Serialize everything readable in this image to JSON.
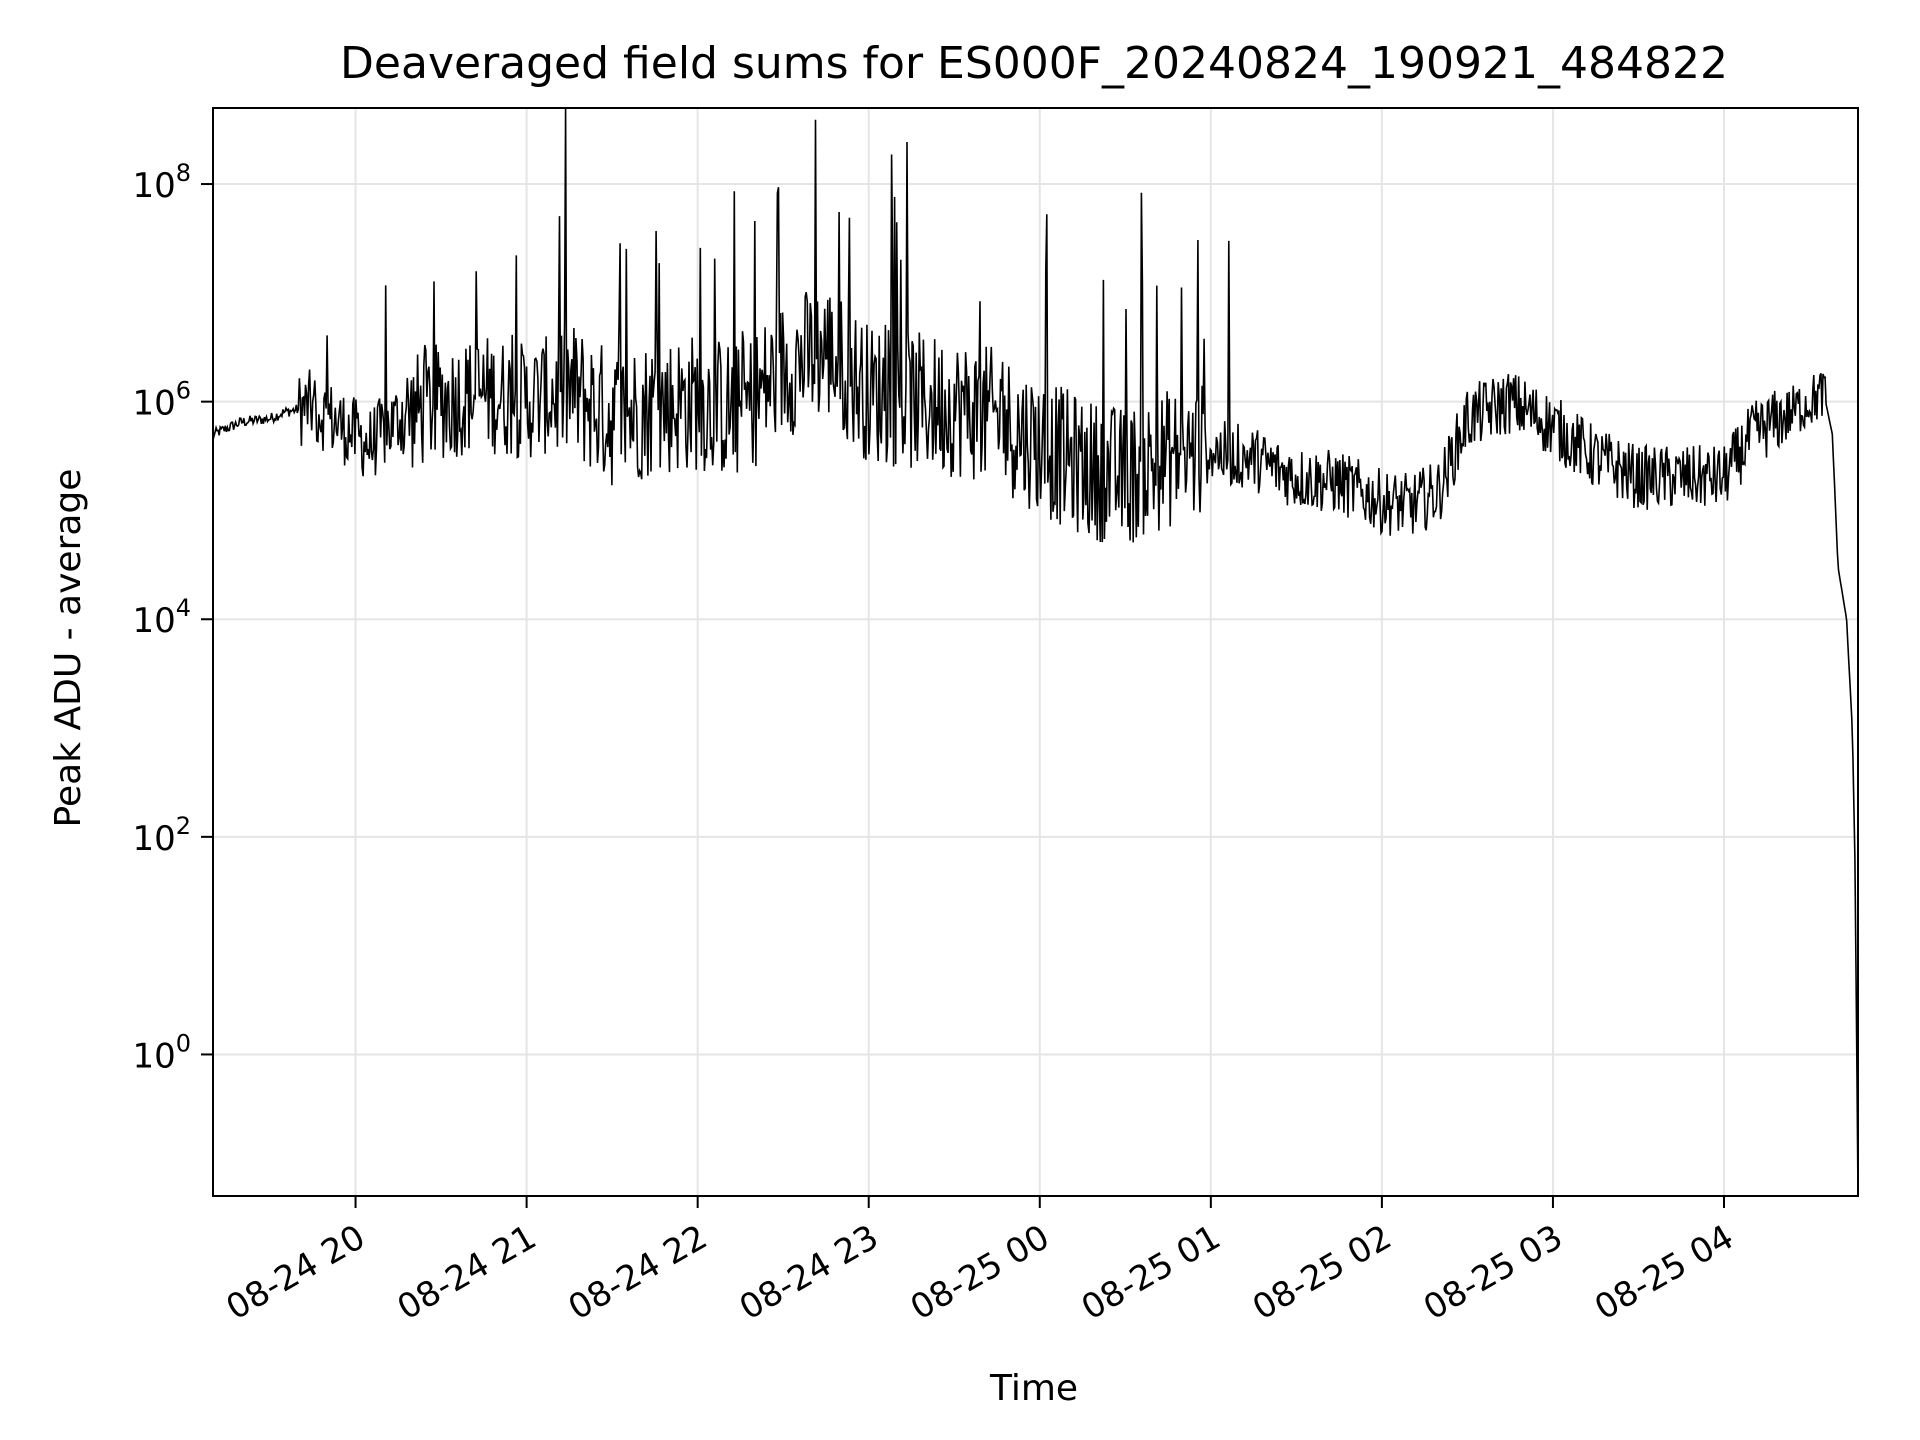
{
  "chart_data": {
    "type": "line",
    "title": "Deaveraged field sums for ES000F_20240824_190921_484822",
    "xlabel": "Time",
    "ylabel": "Peak ADU - average",
    "yscale": "log",
    "grid": true,
    "line_color": "#000000",
    "grid_color": "#e5e5e5",
    "xlim": [
      "2024-08-24 19:10",
      "2024-08-25 04:47"
    ],
    "ylim": [
      0.05,
      500000000
    ],
    "xticks": [
      "08-24 20",
      "08-24 21",
      "08-24 22",
      "08-24 23",
      "08-25 00",
      "08-25 01",
      "08-25 02",
      "08-25 03",
      "08-25 04"
    ],
    "xtick_values": [
      "2024-08-24 20:00",
      "2024-08-24 21:00",
      "2024-08-24 22:00",
      "2024-08-24 23:00",
      "2024-08-25 00:00",
      "2024-08-25 01:00",
      "2024-08-25 02:00",
      "2024-08-25 03:00",
      "2024-08-25 04:00"
    ],
    "yticks": [
      {
        "base": "10",
        "exp": "0",
        "value": 1
      },
      {
        "base": "10",
        "exp": "2",
        "value": 100
      },
      {
        "base": "10",
        "exp": "4",
        "value": 10000
      },
      {
        "base": "10",
        "exp": "6",
        "value": 1000000
      },
      {
        "base": "10",
        "exp": "8",
        "value": 100000000
      }
    ],
    "series": [
      {
        "x": [
          "2024-08-24 19:10",
          "2024-08-24 19:20",
          "2024-08-24 19:30",
          "2024-08-24 19:35",
          "2024-08-24 19:45",
          "2024-08-24 19:55",
          "2024-08-24 20:05",
          "2024-08-24 20:15",
          "2024-08-24 20:30",
          "2024-08-24 20:45",
          "2024-08-24 21:00",
          "2024-08-24 21:15",
          "2024-08-24 21:30",
          "2024-08-24 21:45",
          "2024-08-24 22:00",
          "2024-08-24 22:15",
          "2024-08-24 22:30",
          "2024-08-24 22:45",
          "2024-08-24 23:00",
          "2024-08-24 23:15",
          "2024-08-24 23:30",
          "2024-08-24 23:45",
          "2024-08-25 00:00",
          "2024-08-25 00:15",
          "2024-08-25 00:30",
          "2024-08-25 00:45",
          "2024-08-25 01:00",
          "2024-08-25 01:15",
          "2024-08-25 01:30",
          "2024-08-25 01:45",
          "2024-08-25 02:00",
          "2024-08-25 02:10",
          "2024-08-25 02:20",
          "2024-08-25 02:30",
          "2024-08-25 02:45",
          "2024-08-25 03:00",
          "2024-08-25 03:15",
          "2024-08-25 03:30",
          "2024-08-25 03:45",
          "2024-08-25 04:00",
          "2024-08-25 04:10",
          "2024-08-25 04:20",
          "2024-08-25 04:30",
          "2024-08-25 04:35",
          "2024-08-25 04:38",
          "2024-08-25 04:40",
          "2024-08-25 04:43",
          "2024-08-25 04:45",
          "2024-08-25 04:46",
          "2024-08-25 04:47"
        ],
        "y": [
          500000,
          650000,
          700000,
          800000,
          900000,
          600000,
          400000,
          700000,
          1000000,
          1200000,
          1000000,
          1300000,
          700000,
          900000,
          1000000,
          800000,
          2000000,
          3000000,
          1200000,
          1000000,
          900000,
          700000,
          400000,
          250000,
          200000,
          300000,
          350000,
          300000,
          200000,
          180000,
          120000,
          110000,
          150000,
          700000,
          1000000,
          600000,
          300000,
          200000,
          200000,
          200000,
          500000,
          700000,
          1000000,
          1200000,
          500000,
          30000,
          10000,
          1000,
          50,
          0.05
        ]
      }
    ]
  }
}
